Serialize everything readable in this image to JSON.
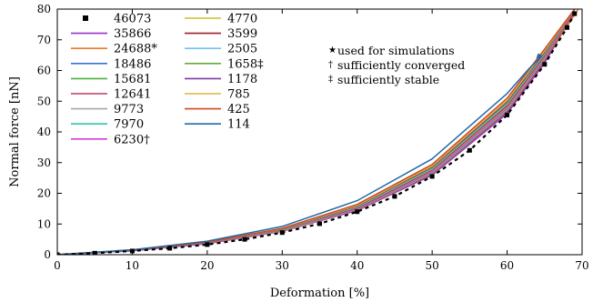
{
  "chart_data": {
    "type": "line",
    "title": "",
    "xlabel": "Deformation [%]",
    "ylabel": "Normal force [nN]",
    "xlim": [
      0,
      70
    ],
    "ylim": [
      0,
      80
    ],
    "xticks": [
      0,
      10,
      20,
      30,
      40,
      50,
      60,
      70
    ],
    "yticks": [
      0,
      10,
      20,
      30,
      40,
      50,
      60,
      70,
      80
    ],
    "grid": false,
    "legend_position": "top-left, two columns",
    "notes": [
      {
        "symbol": "★",
        "text": "used for simulations"
      },
      {
        "symbol": "†",
        "text": "sufficiently converged"
      },
      {
        "symbol": "‡",
        "text": "sufficiently stable"
      }
    ],
    "series": [
      {
        "name": "46073",
        "style": "dashed-squares",
        "color": "#000000",
        "x": [
          0,
          5,
          10,
          15,
          20,
          25,
          30,
          35,
          40,
          45,
          50,
          55,
          60,
          65,
          68,
          69
        ],
        "y": [
          0,
          0.5,
          1.2,
          2.1,
          3.3,
          5.0,
          7.2,
          10.1,
          14.0,
          19.0,
          25.5,
          34.0,
          45.5,
          62.0,
          74.0,
          78.5
        ]
      },
      {
        "name": "35866",
        "color": "#9b30c8",
        "x": [
          0,
          10,
          20,
          30,
          40,
          50,
          60,
          65,
          69
        ],
        "y": [
          0,
          1.3,
          3.6,
          7.6,
          14.4,
          25.9,
          46.0,
          62.5,
          79.0
        ]
      },
      {
        "name": "24688*",
        "color": "#e8792b",
        "x": [
          0,
          10,
          20,
          24,
          30,
          40,
          50,
          60,
          65,
          69.5
        ],
        "y": [
          0,
          1.6,
          4.3,
          5.9,
          8.1,
          14.6,
          26.2,
          46.8,
          63.5,
          80
        ]
      },
      {
        "name": "18486",
        "color": "#3a6fd8",
        "x": [
          0,
          10,
          20,
          30,
          40,
          50,
          60,
          65,
          69
        ],
        "y": [
          0,
          1.3,
          3.7,
          7.8,
          14.7,
          26.4,
          46.9,
          63.5,
          79.5
        ]
      },
      {
        "name": "15681",
        "color": "#4caf3f",
        "x": [
          0,
          10,
          20,
          30,
          40,
          50,
          60,
          65,
          69
        ],
        "y": [
          0,
          1.3,
          3.7,
          7.7,
          14.6,
          26.2,
          46.6,
          63.2,
          79.5
        ]
      },
      {
        "name": "12641",
        "color": "#c0395b",
        "x": [
          0,
          10,
          20,
          30,
          40,
          50,
          60,
          65,
          69
        ],
        "y": [
          0,
          1.3,
          3.7,
          7.7,
          14.6,
          26.3,
          46.7,
          63.3,
          79.5
        ]
      },
      {
        "name": "9773",
        "color": "#a6a6a6",
        "x": [
          0,
          10,
          20,
          30,
          40,
          50,
          60,
          65,
          69
        ],
        "y": [
          0,
          1.3,
          3.8,
          7.8,
          14.8,
          26.6,
          47.2,
          63.8,
          80
        ]
      },
      {
        "name": "7970",
        "color": "#33c1b1",
        "x": [
          0,
          10,
          20,
          30,
          40,
          50,
          60,
          65,
          69
        ],
        "y": [
          0,
          1.3,
          3.8,
          7.9,
          14.9,
          26.8,
          47.5,
          64.0,
          80
        ]
      },
      {
        "name": "6230†",
        "color": "#d63ad6",
        "x": [
          0,
          10,
          20,
          30,
          40,
          50,
          60,
          65,
          69
        ],
        "y": [
          0,
          1.3,
          3.8,
          7.9,
          15.0,
          27.0,
          47.8,
          64.2,
          80
        ]
      },
      {
        "name": "4770",
        "color": "#c9c12a",
        "x": [
          0,
          10,
          20,
          30,
          40,
          50,
          60,
          65,
          69
        ],
        "y": [
          0,
          1.4,
          3.9,
          8.0,
          15.2,
          27.4,
          48.3,
          64.6,
          80
        ]
      },
      {
        "name": "3599",
        "color": "#9e1f2a",
        "x": [
          0,
          10,
          20,
          30,
          40,
          50,
          60,
          65,
          69
        ],
        "y": [
          0,
          1.4,
          3.9,
          8.1,
          15.3,
          27.6,
          48.6,
          64.9,
          80
        ]
      },
      {
        "name": "2505",
        "color": "#6ec3ea",
        "x": [
          0,
          10,
          20,
          30,
          40,
          50,
          60,
          65,
          69
        ],
        "y": [
          0,
          1.4,
          3.9,
          8.2,
          15.5,
          27.9,
          49.0,
          65.3,
          80
        ]
      },
      {
        "name": "1658‡",
        "color": "#6aa83a",
        "x": [
          0,
          10,
          20,
          30,
          40,
          50,
          60,
          65,
          69
        ],
        "y": [
          0,
          1.4,
          4.0,
          8.3,
          15.7,
          28.2,
          49.4,
          65.7,
          80
        ]
      },
      {
        "name": "1178",
        "color": "#7b3aa8",
        "x": [
          0,
          10,
          20,
          30,
          40,
          50,
          60,
          65,
          69
        ],
        "y": [
          0,
          1.4,
          4.0,
          8.4,
          15.9,
          28.6,
          49.9,
          66.0,
          80
        ]
      },
      {
        "name": "785",
        "color": "#e0b43a",
        "x": [
          0,
          10,
          20,
          30,
          40,
          50,
          60,
          65,
          69
        ],
        "y": [
          0,
          1.5,
          4.1,
          8.5,
          16.1,
          28.9,
          50.3,
          66.4,
          80
        ]
      },
      {
        "name": "425",
        "color": "#cf4a1f",
        "x": [
          0,
          10,
          20,
          30,
          40,
          50,
          60,
          65,
          69
        ],
        "y": [
          0,
          1.5,
          4.1,
          8.6,
          16.4,
          29.4,
          51.0,
          67.0,
          80
        ]
      },
      {
        "name": "114",
        "color": "#1f6aa8",
        "x": [
          0,
          10,
          20,
          30,
          40,
          50,
          60,
          63,
          64,
          64.6
        ],
        "y": [
          0,
          1.6,
          4.4,
          9.2,
          17.6,
          31.2,
          52.5,
          60.8,
          63.2,
          65.0
        ]
      }
    ]
  }
}
